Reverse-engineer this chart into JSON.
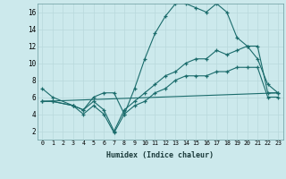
{
  "bg_color": "#cce9ec",
  "line_color": "#1a6b6b",
  "grid_color": "#b8d8dc",
  "xlabel": "Humidex (Indice chaleur)",
  "ylim": [
    1,
    17
  ],
  "xlim": [
    -0.5,
    23.5
  ],
  "yticks": [
    2,
    4,
    6,
    8,
    10,
    12,
    14,
    16
  ],
  "xticks": [
    0,
    1,
    2,
    3,
    4,
    5,
    6,
    7,
    8,
    9,
    10,
    11,
    12,
    13,
    14,
    15,
    16,
    17,
    18,
    19,
    20,
    21,
    22,
    23
  ],
  "series1_x": [
    0,
    1,
    3,
    4,
    5,
    6,
    7,
    8,
    9,
    10,
    11,
    12,
    13,
    14,
    15,
    16,
    17,
    18,
    19,
    20,
    21,
    22,
    23
  ],
  "series1_y": [
    7.0,
    6.0,
    5.0,
    4.5,
    6.0,
    6.5,
    6.5,
    4.0,
    7.0,
    10.5,
    13.5,
    15.5,
    17.0,
    17.0,
    16.5,
    16.0,
    17.0,
    16.0,
    13.0,
    12.0,
    10.5,
    7.5,
    6.5
  ],
  "series2_x": [
    0,
    1,
    3,
    4,
    5,
    6,
    7,
    8,
    9,
    10,
    11,
    12,
    13,
    14,
    15,
    16,
    17,
    18,
    19,
    20,
    21,
    22,
    23
  ],
  "series2_y": [
    5.5,
    5.5,
    5.0,
    4.5,
    5.5,
    4.5,
    2.0,
    4.5,
    5.5,
    6.5,
    7.5,
    8.5,
    9.0,
    10.0,
    10.5,
    10.5,
    11.5,
    11.0,
    11.5,
    12.0,
    12.0,
    6.5,
    6.5
  ],
  "series3_x": [
    0,
    1,
    3,
    4,
    5,
    6,
    7,
    8,
    9,
    10,
    11,
    12,
    13,
    14,
    15,
    16,
    17,
    18,
    19,
    20,
    21,
    22,
    23
  ],
  "series3_y": [
    5.5,
    5.5,
    5.0,
    4.0,
    5.0,
    4.0,
    1.8,
    4.0,
    5.0,
    5.5,
    6.5,
    7.0,
    8.0,
    8.5,
    8.5,
    8.5,
    9.0,
    9.0,
    9.5,
    9.5,
    9.5,
    6.0,
    6.0
  ],
  "series4_x": [
    0,
    23
  ],
  "series4_y": [
    5.5,
    6.5
  ]
}
